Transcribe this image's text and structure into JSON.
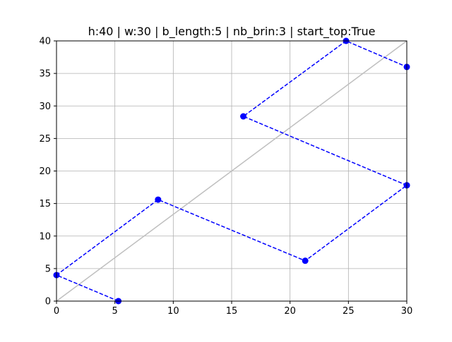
{
  "chart_data": {
    "type": "line",
    "title": "h:40 | w:30 | b_length:5 | nb_brin:3 | start_top:True",
    "xlabel": "",
    "ylabel": "",
    "xlim": [
      0,
      30
    ],
    "ylim": [
      0,
      40
    ],
    "x_ticks": [
      0,
      5,
      10,
      15,
      20,
      25,
      30
    ],
    "y_ticks": [
      0,
      5,
      10,
      15,
      20,
      25,
      30,
      35,
      40
    ],
    "grid": true,
    "legend": "none",
    "reference_line": {
      "x": [
        0,
        30
      ],
      "y": [
        0,
        40
      ],
      "color": "#bfbfbf"
    },
    "series": [
      {
        "style": "dashed-with-markers",
        "color": "#0000ff",
        "x": [
          5.3,
          0,
          8.7,
          21.3,
          30
        ],
        "y": [
          0,
          4,
          15.6,
          6.2,
          17.8
        ]
      },
      {
        "style": "dashed-with-markers",
        "color": "#0000ff",
        "x": [
          30,
          16,
          24.8,
          30
        ],
        "y": [
          17.8,
          28.4,
          40,
          36
        ]
      }
    ]
  }
}
